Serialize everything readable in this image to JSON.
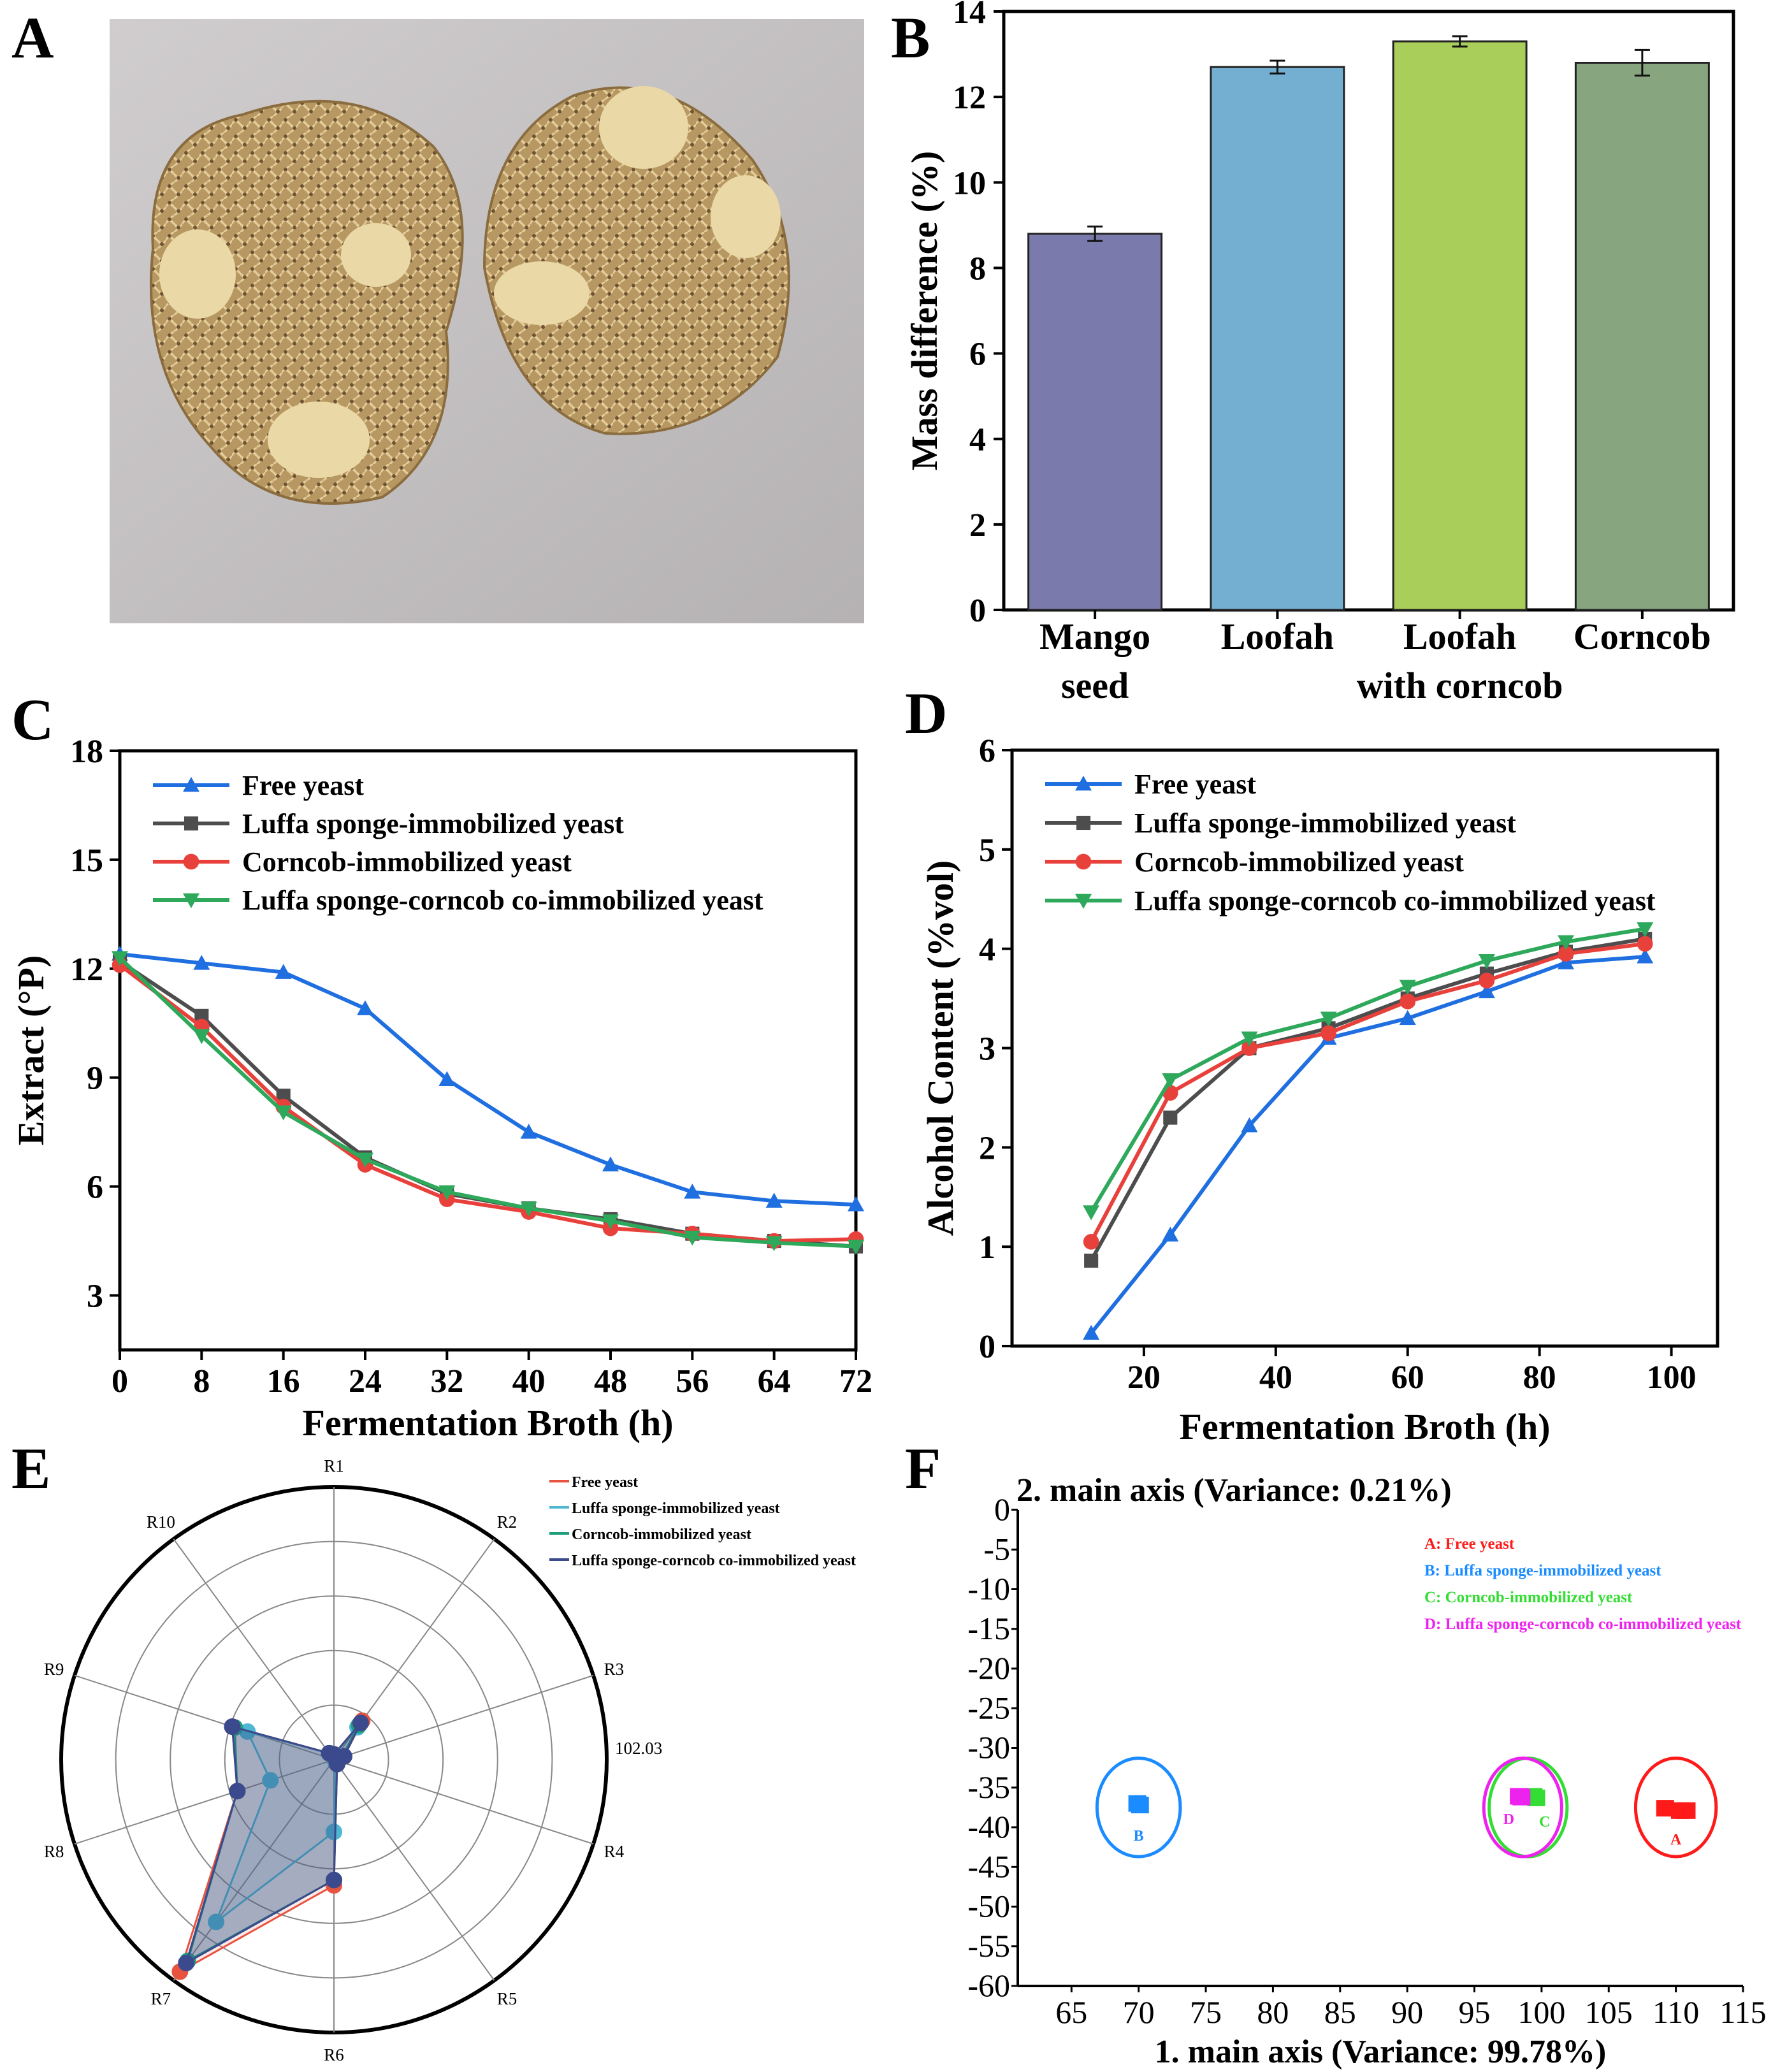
{
  "panels": {
    "A": {
      "label": "A",
      "photo_description_icon": "loofah-sponge-photo"
    },
    "B": {
      "label": "B"
    },
    "C": {
      "label": "C"
    },
    "D": {
      "label": "D"
    },
    "E": {
      "label": "E"
    },
    "F": {
      "label": "F"
    }
  },
  "chart_data": [
    {
      "id": "B",
      "type": "bar",
      "ylabel": "Mass difference (%)",
      "xlabel": "",
      "ylim": [
        0,
        14
      ],
      "yticks": [
        0,
        2,
        4,
        6,
        8,
        10,
        12,
        14
      ],
      "categories": [
        [
          "Mango",
          "seed"
        ],
        [
          "Loofah"
        ],
        [
          "Loofah",
          "with corncob"
        ],
        [
          "Corncob"
        ]
      ],
      "values": [
        8.8,
        12.7,
        13.3,
        12.8
      ],
      "errors": [
        0.17,
        0.15,
        0.12,
        0.3
      ],
      "colors": [
        "#7a7aac",
        "#74aed1",
        "#a9cf5a",
        "#87a57e"
      ]
    },
    {
      "id": "C",
      "type": "line",
      "xlabel": "Fermentation Broth (h)",
      "ylabel": "Extract (°P)",
      "xlim": [
        0,
        72
      ],
      "ylim": [
        1.5,
        18
      ],
      "xticks": [
        0,
        8,
        16,
        24,
        32,
        40,
        48,
        56,
        64,
        72
      ],
      "yticks": [
        3,
        6,
        9,
        12,
        15,
        18
      ],
      "x": [
        0,
        8,
        16,
        24,
        32,
        40,
        48,
        56,
        64,
        72
      ],
      "series": [
        {
          "name": "Free yeast",
          "color": "#1f6fe0",
          "marker": "triangle-up",
          "values": [
            12.4,
            12.15,
            11.9,
            10.9,
            8.95,
            7.5,
            6.6,
            5.85,
            5.6,
            5.5
          ]
        },
        {
          "name": "Luffa sponge-immobilized yeast",
          "color": "#4d4d4d",
          "marker": "square",
          "values": [
            12.2,
            10.7,
            8.5,
            6.8,
            5.8,
            5.4,
            5.1,
            4.7,
            4.5,
            4.35
          ]
        },
        {
          "name": "Corncob-immobilized yeast",
          "color": "#e8413c",
          "marker": "circle",
          "values": [
            12.1,
            10.4,
            8.2,
            6.6,
            5.65,
            5.3,
            4.85,
            4.7,
            4.5,
            4.55
          ]
        },
        {
          "name": "Luffa sponge-corncob co-immobilized yeast",
          "color": "#2ea85a",
          "marker": "triangle-down",
          "values": [
            12.3,
            10.15,
            8.05,
            6.75,
            5.85,
            5.4,
            5.05,
            4.6,
            4.45,
            4.35
          ]
        }
      ]
    },
    {
      "id": "D",
      "type": "line",
      "xlabel": "Fermentation Broth (h)",
      "ylabel": "Alcohol Content (%vol)",
      "xlim": [
        0,
        107
      ],
      "ylim": [
        0,
        6
      ],
      "xticks": [
        20,
        40,
        60,
        80,
        100
      ],
      "yticks": [
        0,
        1,
        2,
        3,
        4,
        5,
        6
      ],
      "x": [
        12,
        24,
        36,
        48,
        60,
        72,
        84,
        96
      ],
      "series": [
        {
          "name": "Free yeast",
          "color": "#1f6fe0",
          "marker": "triangle-up",
          "values": [
            0.13,
            1.12,
            2.22,
            3.1,
            3.3,
            3.57,
            3.86,
            3.92
          ]
        },
        {
          "name": "Luffa sponge-immobilized yeast",
          "color": "#4d4d4d",
          "marker": "square",
          "values": [
            0.86,
            2.3,
            3.0,
            3.2,
            3.5,
            3.75,
            3.97,
            4.1
          ]
        },
        {
          "name": "Corncob-immobilized yeast",
          "color": "#e8413c",
          "marker": "circle",
          "values": [
            1.05,
            2.55,
            3.0,
            3.15,
            3.47,
            3.68,
            3.95,
            4.05
          ]
        },
        {
          "name": "Luffa sponge-corncob co-immobilized yeast",
          "color": "#2ea85a",
          "marker": "triangle-down",
          "values": [
            1.35,
            2.68,
            3.1,
            3.3,
            3.62,
            3.88,
            4.07,
            4.2
          ]
        }
      ]
    },
    {
      "id": "E",
      "type": "radar",
      "axes": [
        "R1",
        "R2",
        "R3",
        "R4",
        "R5",
        "R6",
        "R7",
        "R8",
        "R9",
        "R10"
      ],
      "max_label": "102.03",
      "max": 102.03,
      "series": [
        {
          "name": "Free yeast",
          "color": "#e8533f",
          "values": [
            2,
            18,
            4,
            1,
            2,
            47,
            98,
            38,
            40,
            3
          ]
        },
        {
          "name": "Luffa sponge-immobilized yeast",
          "color": "#4fb6d4",
          "values": [
            2,
            15,
            3,
            1,
            1,
            27,
            75,
            25,
            34,
            3
          ]
        },
        {
          "name": "Corncob-immobilized yeast",
          "color": "#1f9e7e",
          "values": [
            2,
            16,
            3,
            1,
            2,
            45,
            93,
            38,
            39,
            3
          ]
        },
        {
          "name": "Luffa sponge-corncob co-immobilized yeast",
          "color": "#3a4a8c",
          "values": [
            2,
            17,
            4,
            1,
            2,
            45,
            94,
            38,
            40,
            3
          ]
        }
      ]
    },
    {
      "id": "F",
      "type": "scatter",
      "xlabel": "1. main axis (Variance: 99.78%)",
      "ylabel": "2. main axis (Variance: 0.21%)",
      "xlim": [
        61,
        115
      ],
      "ylim": [
        -60,
        0
      ],
      "xticks": [
        65,
        70,
        75,
        80,
        85,
        90,
        95,
        100,
        105,
        110,
        115
      ],
      "yticks": [
        0,
        -5,
        -10,
        -15,
        -20,
        -25,
        -30,
        -35,
        -40,
        -45,
        -50,
        -55,
        -60
      ],
      "groups": [
        {
          "letter": "A",
          "name": "A: Free yeast",
          "color": "#ff1a1a",
          "cx": 110,
          "cy": -37.5,
          "rx": 3,
          "ry": 6.2,
          "points": [
            [
              109.2,
              -37.6
            ],
            [
              110.3,
              -37.9
            ],
            [
              110.8,
              -37.9
            ]
          ]
        },
        {
          "letter": "B",
          "name": "B: Luffa sponge-immobilized yeast",
          "color": "#1a8cff",
          "cx": 70,
          "cy": -37.5,
          "rx": 3.1,
          "ry": 6.2,
          "points": [
            [
              69.9,
              -37.0
            ],
            [
              70.1,
              -37.2
            ]
          ]
        },
        {
          "letter": "C",
          "name": "C: Corncob-immobilized yeast",
          "color": "#33dd33",
          "cx": 99,
          "cy": -37.5,
          "rx": 2.9,
          "ry": 6.2,
          "points": [
            [
              99.4,
              -36.1
            ],
            [
              99.6,
              -36.3
            ]
          ]
        },
        {
          "letter": "D",
          "name": "D: Luffa sponge-corncob co-immobilized yeast",
          "color": "#ee22ee",
          "cx": 98.6,
          "cy": -37.5,
          "rx": 2.9,
          "ry": 6.2,
          "points": [
            [
              98.3,
              -36.1
            ],
            [
              98.5,
              -36.2
            ]
          ]
        }
      ]
    }
  ]
}
